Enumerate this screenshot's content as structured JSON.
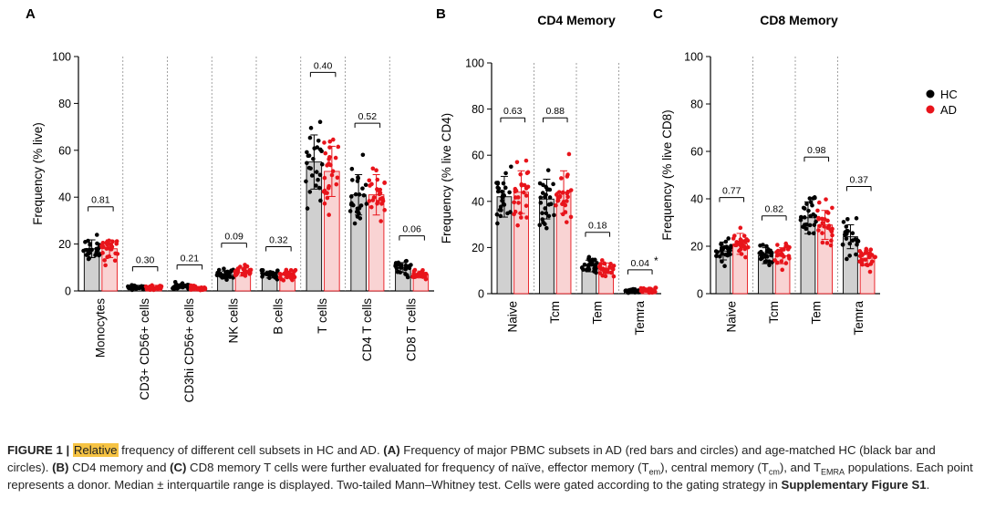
{
  "colors": {
    "hc": "#000000",
    "ad": "#e8141b",
    "hc_bar": "#d0d0d0",
    "ad_bar": "#f9d3d3"
  },
  "legend": {
    "hc": "HC",
    "ad": "AD",
    "placement": "right"
  },
  "chart_data": [
    {
      "panel": "A",
      "type": "bar",
      "title": "",
      "ylabel": "Frequency (% live)",
      "ylim": [
        0,
        100
      ],
      "yticks": [
        0,
        20,
        40,
        60,
        80,
        100
      ],
      "categories": [
        "Monocytes",
        "CD3+ CD56+ cells",
        "CD3hi CD56+ cells",
        "NK cells",
        "B cells",
        "T cells",
        "CD4 T cells",
        "CD8 T cells"
      ],
      "series": [
        {
          "name": "HC",
          "values": [
            18,
            1.5,
            2,
            7,
            7,
            55,
            41,
            10
          ]
        },
        {
          "name": "AD",
          "values": [
            18,
            1.5,
            1,
            8,
            7,
            51,
            41,
            7
          ]
        }
      ],
      "pvalues": [
        "0.81",
        "0.30",
        "0.21",
        "0.09",
        "0.32",
        "0.40",
        "0.52",
        "0.06"
      ]
    },
    {
      "panel": "B",
      "type": "bar",
      "title": "CD4 Memory",
      "ylabel": "Frequency (% live CD4)",
      "ylim": [
        0,
        100
      ],
      "yticks": [
        0,
        20,
        40,
        60,
        80,
        100
      ],
      "categories": [
        "Naive",
        "Tcm",
        "Tem",
        "Temra"
      ],
      "series": [
        {
          "name": "HC",
          "values": [
            42,
            41,
            12,
            1
          ]
        },
        {
          "name": "AD",
          "values": [
            44,
            44,
            11,
            1.5
          ]
        }
      ],
      "pvalues": [
        "0.63",
        "0.88",
        "0.18",
        "0.04"
      ],
      "pvalue_marks": [
        "",
        "",
        "",
        "*"
      ]
    },
    {
      "panel": "C",
      "type": "bar",
      "title": "CD8 Memory",
      "ylabel": "Frequency (% live CD8)",
      "ylim": [
        0,
        100
      ],
      "yticks": [
        0,
        20,
        40,
        60,
        80,
        100
      ],
      "categories": [
        "Naive",
        "Tcm",
        "Tem",
        "Temra"
      ],
      "series": [
        {
          "name": "HC",
          "values": [
            18,
            16,
            32,
            24
          ]
        },
        {
          "name": "AD",
          "values": [
            21,
            16,
            29,
            15
          ]
        }
      ],
      "pvalues": [
        "0.77",
        "0.82",
        "0.98",
        "0.37"
      ]
    }
  ],
  "caption": {
    "label": "FIGURE 1 |",
    "highlight": "Relative",
    "t1": " frequency of different cell subsets in HC and AD. ",
    "a": "(A)",
    "t2": " Frequency of major PBMC subsets in AD (red bars and circles) and age-matched HC (black bar and circles). ",
    "b": "(B)",
    "t3": " CD4 memory and ",
    "c": "(C)",
    "t4": " CD8 memory T cells were further evaluated for frequency of naïve, effector memory (T",
    "s1": "em",
    "t5": "), central memory (T",
    "s2": "cm",
    "t6": "), and T",
    "s3": "EMRA",
    "t7": " populations. Each point represents a donor. Median ± interquartile range is displayed. Two-tailed Mann–Whitney test. Cells were gated according to the gating strategy in ",
    "ref": "Supplementary Figure S1",
    "t8": "."
  }
}
